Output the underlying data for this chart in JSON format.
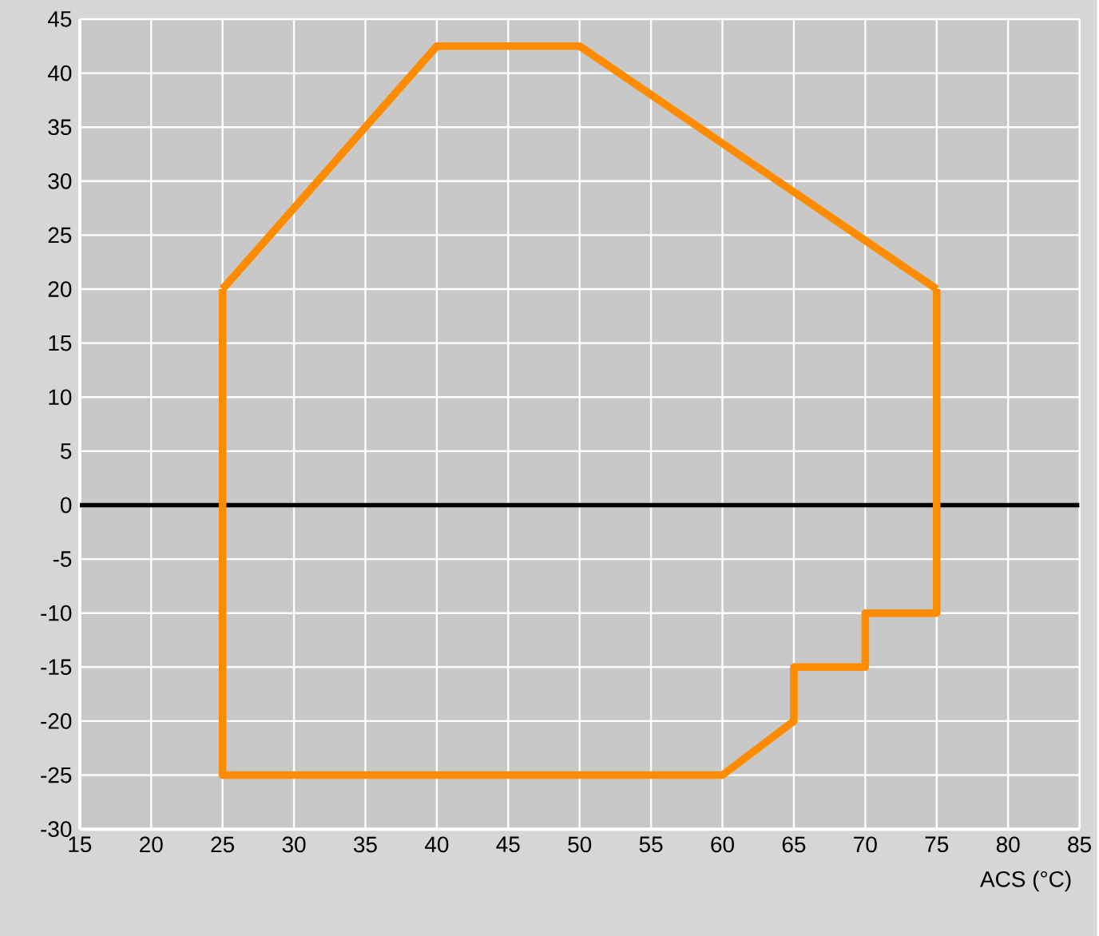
{
  "chart_data": {
    "type": "line",
    "xlabel": "ACS (°C)",
    "xlim": [
      15,
      85
    ],
    "ylim": [
      -30,
      45
    ],
    "xticks": [
      15,
      20,
      25,
      30,
      35,
      40,
      45,
      50,
      55,
      60,
      65,
      70,
      75,
      80,
      85
    ],
    "yticks": [
      -30,
      -25,
      -20,
      -15,
      -10,
      -5,
      0,
      5,
      10,
      15,
      20,
      25,
      30,
      35,
      40,
      45
    ],
    "grid": true,
    "ref_lines": [
      {
        "axis": "y",
        "value": 0,
        "color": "#000000"
      }
    ],
    "series": [
      {
        "color": "#ff8c00",
        "x": [
          25,
          40,
          50,
          75
        ],
        "values": [
          20,
          42.5,
          42.5,
          20
        ]
      },
      {
        "color": "#ff8c00",
        "x": [
          25,
          25,
          60,
          65,
          65,
          70,
          70,
          75,
          75
        ],
        "values": [
          20,
          -25,
          -25,
          -20,
          -15,
          -15,
          -10,
          -10,
          20
        ]
      }
    ]
  }
}
